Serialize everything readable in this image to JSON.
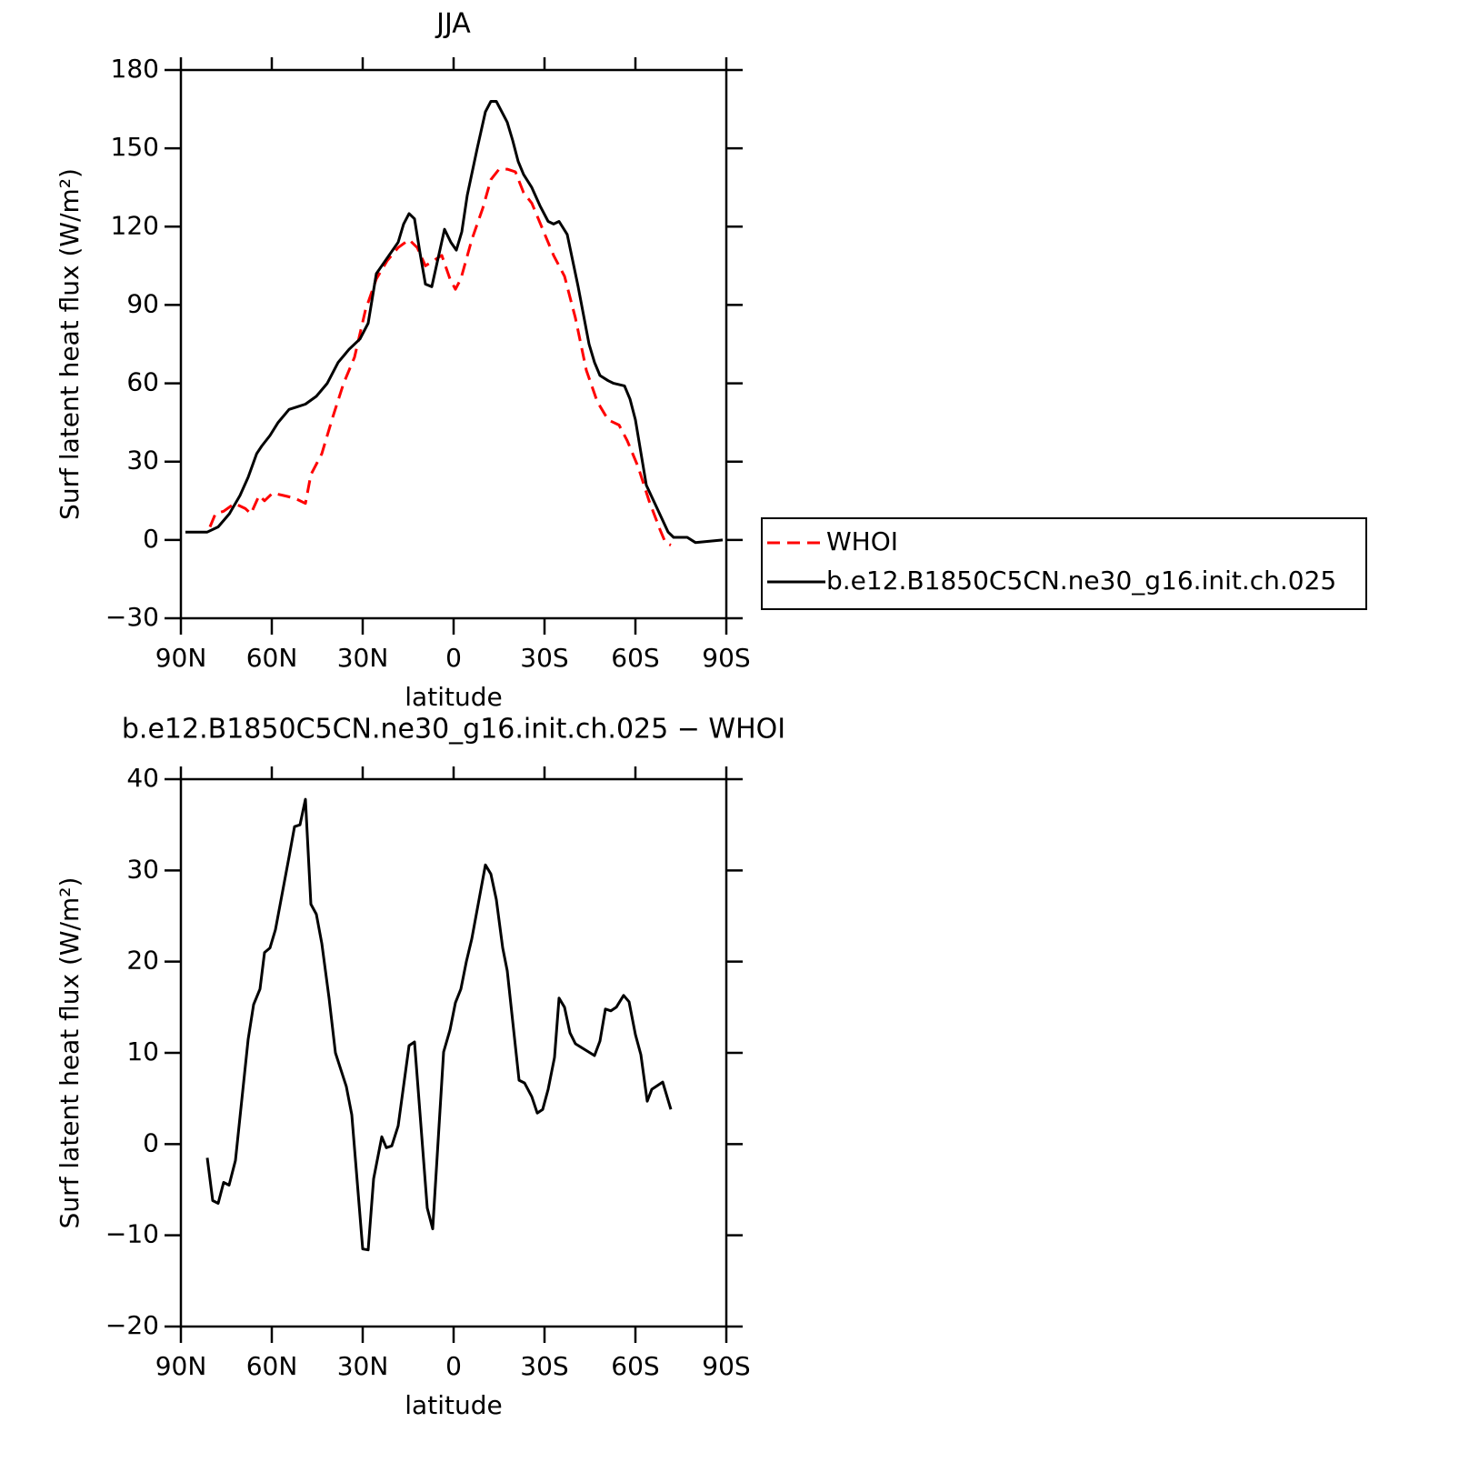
{
  "chart_data": [
    {
      "type": "line",
      "title": "JJA",
      "xlabel": "latitude",
      "ylabel": "Surf latent heat flux (W/m²)",
      "xlim": [
        90,
        -90
      ],
      "xticks": [
        {
          "value": 90,
          "label": "90N"
        },
        {
          "value": 60,
          "label": "60N"
        },
        {
          "value": 30,
          "label": "30N"
        },
        0,
        {
          "value": -30,
          "label": "30S"
        },
        {
          "value": -60,
          "label": "60S"
        },
        {
          "value": -90,
          "label": "90S"
        }
      ],
      "ylim": [
        -30,
        180
      ],
      "yticks": [
        {
          "value": -30,
          "label": "−30"
        },
        0,
        30,
        60,
        90,
        120,
        150,
        180
      ],
      "legend": "right",
      "series": [
        {
          "name": "WHOI",
          "color": "#ff0000",
          "dash": true,
          "x": [
            80.4,
            78.6,
            75.9,
            72.3,
            68.7,
            66.9,
            64.2,
            62.4,
            59.7,
            56.1,
            52.5,
            48.9,
            47.1,
            43.5,
            39.9,
            36.3,
            32.7,
            29.1,
            25.5,
            21.9,
            18.3,
            14.7,
            12,
            9.3,
            6.6,
            3.9,
            1.2,
            -0.6,
            -2.4,
            -6,
            -9.6,
            -12.3,
            -15,
            -17.7,
            -20.4,
            -23.1,
            -25.8,
            -29.4,
            -33,
            -36.6,
            -40.2,
            -43.8,
            -47.4,
            -51,
            -54.6,
            -57.3,
            -60.9,
            -64.5,
            -68.1,
            -69.9,
            -71.7
          ],
          "values": [
            5,
            10,
            11,
            14,
            12,
            10,
            17,
            15,
            18,
            17,
            16,
            14,
            25,
            33,
            47,
            60,
            70,
            88,
            100,
            107,
            112,
            115,
            112,
            105,
            107,
            109,
            100,
            96,
            100,
            115,
            127,
            138,
            142,
            142,
            141,
            133,
            129,
            119,
            109,
            101,
            85,
            65,
            53,
            46,
            44,
            38,
            28,
            15,
            4,
            -1,
            -2
          ]
        },
        {
          "name": "b.e12.B1850C5CN.ne30_g16.init.ch.025",
          "color": "#000000",
          "dash": false,
          "x": [
            88.5,
            81.3,
            77.7,
            74,
            70.5,
            67.8,
            65,
            63.3,
            60.6,
            57.9,
            54.3,
            51.6,
            48.9,
            45.3,
            41.7,
            38.1,
            34.5,
            30.9,
            28.2,
            25.5,
            21.9,
            18.3,
            16.5,
            14.7,
            12.9,
            11.1,
            9.3,
            7.2,
            3,
            0.9,
            -0.9,
            -2.7,
            -4.5,
            -7.8,
            -10.5,
            -12.3,
            -14.1,
            -15.9,
            -17.7,
            -19.5,
            -21.3,
            -23.1,
            -25.8,
            -28.5,
            -31.2,
            -33,
            -34.8,
            -37.5,
            -41.1,
            -44.7,
            -46.5,
            -48.3,
            -51,
            -52.8,
            -56.4,
            -58.2,
            -60,
            -63.6,
            -67.2,
            -70.8,
            -72.6,
            -77.1,
            -79.8,
            -88.8
          ],
          "values": [
            3,
            3,
            5,
            10,
            17,
            24,
            33,
            36,
            40,
            45,
            50,
            51,
            52,
            55,
            60,
            68,
            73,
            77,
            83,
            102,
            108,
            114,
            121,
            125,
            123,
            110,
            98,
            97,
            119,
            114,
            111,
            118,
            132,
            150,
            164,
            168,
            168,
            164,
            160,
            153,
            145,
            140,
            135,
            128,
            122,
            121,
            122,
            117,
            97,
            75,
            68,
            63,
            61,
            60,
            59,
            54,
            46,
            21,
            12,
            3,
            1,
            1,
            -1,
            0
          ]
        }
      ]
    },
    {
      "type": "line",
      "title": "b.e12.B1850C5CN.ne30_g16.init.ch.025 − WHOI",
      "xlabel": "latitude",
      "ylabel": "Surf latent heat flux (W/m²)",
      "xlim": [
        90,
        -90
      ],
      "xticks": [
        {
          "value": 90,
          "label": "90N"
        },
        {
          "value": 60,
          "label": "60N"
        },
        {
          "value": 30,
          "label": "30N"
        },
        0,
        {
          "value": -30,
          "label": "30S"
        },
        {
          "value": -60,
          "label": "60S"
        },
        {
          "value": -90,
          "label": "90S"
        }
      ],
      "ylim": [
        -20,
        40
      ],
      "yticks": [
        {
          "value": -20,
          "label": "−20"
        },
        {
          "value": -10,
          "label": "−10"
        },
        0,
        10,
        20,
        30,
        40
      ],
      "series": [
        {
          "color": "#000000",
          "dash": false,
          "x": [
            81.3,
            79.5,
            77.7,
            75.9,
            74.1,
            72,
            67.8,
            66,
            63.9,
            62.4,
            60.6,
            58.8,
            54.3,
            52.5,
            50.7,
            48.9,
            47.1,
            45.3,
            43.5,
            41.1,
            39,
            35.4,
            33.6,
            30,
            28.2,
            26.4,
            23.7,
            22.2,
            20.4,
            18.3,
            14.7,
            12.9,
            8.7,
            6.9,
            3.3,
            1.2,
            -0.6,
            -2.4,
            -4.2,
            -6,
            -10.5,
            -12.3,
            -14.1,
            -16.2,
            -17.7,
            -21.6,
            -23.4,
            -25.8,
            -27.6,
            -29.4,
            -31.2,
            -33.3,
            -34.8,
            -36.6,
            -38.4,
            -40.2,
            -46.5,
            -48.3,
            -50.1,
            -51.9,
            -53.7,
            -56.1,
            -57.9,
            -60,
            -61.8,
            -63.9,
            -65.4,
            -69,
            -71.7
          ],
          "values": [
            -1.5,
            -6.2,
            -6.5,
            -4.2,
            -4.5,
            -1.8,
            11.5,
            15.3,
            17,
            21,
            21.5,
            23.5,
            31.5,
            34.8,
            35,
            37.8,
            26.3,
            25.2,
            22,
            16,
            10,
            6.3,
            3.2,
            -11.5,
            -11.6,
            -3.8,
            0.8,
            -0.4,
            -0.2,
            2,
            10.8,
            11.2,
            -7,
            -9.3,
            10.1,
            12.5,
            15.5,
            17,
            20,
            22.5,
            30.6,
            29.6,
            26.8,
            21.5,
            19,
            7,
            6.7,
            5.2,
            3.4,
            3.8,
            6,
            9.5,
            16,
            15,
            12.2,
            11,
            9.7,
            11.3,
            14.8,
            14.6,
            15,
            16.3,
            15.6,
            12,
            9.8,
            4.7,
            6,
            6.8,
            3.8
          ]
        }
      ]
    }
  ]
}
